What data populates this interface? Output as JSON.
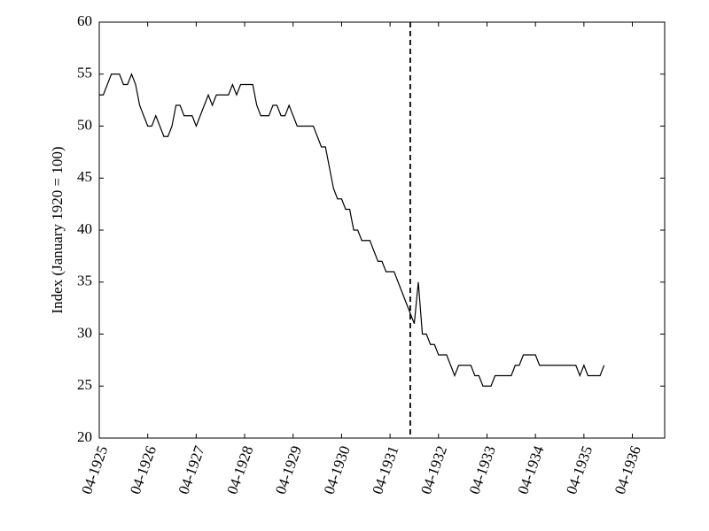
{
  "chart_data": {
    "type": "line",
    "y_label": "Index (January 1920 = 100)",
    "x": [
      "04-1925",
      "05-1925",
      "06-1925",
      "07-1925",
      "08-1925",
      "09-1925",
      "10-1925",
      "11-1925",
      "12-1925",
      "01-1926",
      "02-1926",
      "03-1926",
      "04-1926",
      "05-1926",
      "06-1926",
      "07-1926",
      "08-1926",
      "09-1926",
      "10-1926",
      "11-1926",
      "12-1926",
      "01-1927",
      "02-1927",
      "03-1927",
      "04-1927",
      "05-1927",
      "06-1927",
      "07-1927",
      "08-1927",
      "09-1927",
      "10-1927",
      "11-1927",
      "12-1927",
      "01-1928",
      "02-1928",
      "03-1928",
      "04-1928",
      "05-1928",
      "06-1928",
      "07-1928",
      "08-1928",
      "09-1928",
      "10-1928",
      "11-1928",
      "12-1928",
      "01-1929",
      "02-1929",
      "03-1929",
      "04-1929",
      "05-1929",
      "06-1929",
      "07-1929",
      "08-1929",
      "09-1929",
      "10-1929",
      "11-1929",
      "12-1929",
      "01-1930",
      "02-1930",
      "03-1930",
      "04-1930",
      "05-1930",
      "06-1930",
      "07-1930",
      "08-1930",
      "09-1930",
      "10-1930",
      "11-1930",
      "12-1930",
      "01-1931",
      "02-1931",
      "03-1931",
      "04-1931",
      "05-1931",
      "06-1931",
      "07-1931",
      "08-1931",
      "09-1931",
      "10-1931",
      "11-1931",
      "12-1931",
      "01-1932",
      "02-1932",
      "03-1932",
      "04-1932",
      "05-1932",
      "06-1932",
      "07-1932",
      "08-1932",
      "09-1932",
      "10-1932",
      "11-1932",
      "12-1932",
      "01-1933",
      "02-1933",
      "03-1933",
      "04-1933",
      "05-1933",
      "06-1933",
      "07-1933",
      "08-1933",
      "09-1933",
      "10-1933",
      "11-1933",
      "12-1933",
      "01-1934",
      "02-1934",
      "03-1934",
      "04-1934",
      "05-1934",
      "06-1934",
      "07-1934",
      "08-1934",
      "09-1934",
      "10-1934",
      "11-1934",
      "12-1934",
      "01-1935",
      "02-1935",
      "03-1935",
      "04-1935",
      "05-1935",
      "06-1935",
      "07-1935",
      "08-1935",
      "09-1935"
    ],
    "series": [
      {
        "color": "#000000",
        "values": [
          53,
          53,
          54,
          55,
          55,
          55,
          54,
          54,
          55,
          54,
          52,
          51,
          50,
          50,
          51,
          50,
          49,
          49,
          50,
          52,
          52,
          51,
          51,
          51,
          50,
          51,
          52,
          53,
          52,
          53,
          53,
          53,
          53,
          54,
          53,
          54,
          54,
          54,
          54,
          52,
          51,
          51,
          51,
          52,
          52,
          51,
          51,
          52,
          51,
          50,
          50,
          50,
          50,
          50,
          49,
          48,
          48,
          46,
          44,
          43,
          43,
          42,
          42,
          40,
          40,
          39,
          39,
          39,
          38,
          37,
          37,
          36,
          36,
          36,
          35,
          34,
          33,
          32,
          31,
          35,
          30,
          30,
          29,
          29,
          28,
          28,
          28,
          27,
          26,
          27,
          27,
          27,
          27,
          26,
          26,
          25,
          25,
          25,
          26,
          26,
          26,
          26,
          26,
          27,
          27,
          28,
          28,
          28,
          28,
          27,
          27,
          27,
          27,
          27,
          27,
          27,
          27,
          27,
          27,
          26,
          27,
          26,
          26,
          26,
          26,
          27
        ]
      }
    ],
    "xlim": [
      "04-1925",
      "12-1936"
    ],
    "xticks": [
      "04-1925",
      "04-1926",
      "04-1927",
      "04-1928",
      "04-1929",
      "04-1930",
      "04-1931",
      "04-1932",
      "04-1933",
      "04-1934",
      "04-1935",
      "04-1936"
    ],
    "ylim": [
      20,
      60
    ],
    "yticks": [
      20,
      25,
      30,
      35,
      40,
      45,
      50,
      55,
      60
    ],
    "vline": "09-1931"
  }
}
